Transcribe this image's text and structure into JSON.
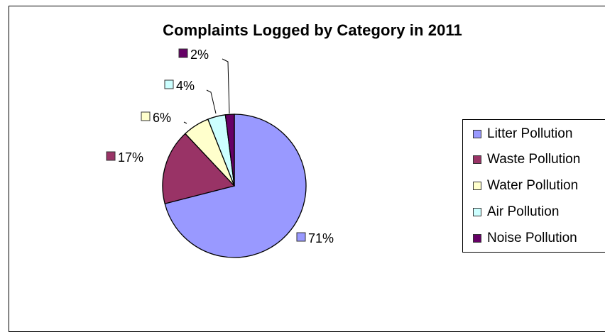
{
  "chart_data": {
    "type": "pie",
    "title": "Complaints Logged by Category in 2011",
    "categories": [
      "Litter Pollution",
      "Waste Pollution",
      "Water Pollution",
      "Air Pollution",
      "Noise Pollution"
    ],
    "values": [
      71,
      17,
      6,
      4,
      2
    ],
    "data_labels": [
      "71%",
      "17%",
      "6%",
      "4%",
      "2%"
    ],
    "colors": [
      "#9999ff",
      "#993366",
      "#ffffcc",
      "#ccffff",
      "#660066"
    ],
    "legend_position": "right"
  }
}
